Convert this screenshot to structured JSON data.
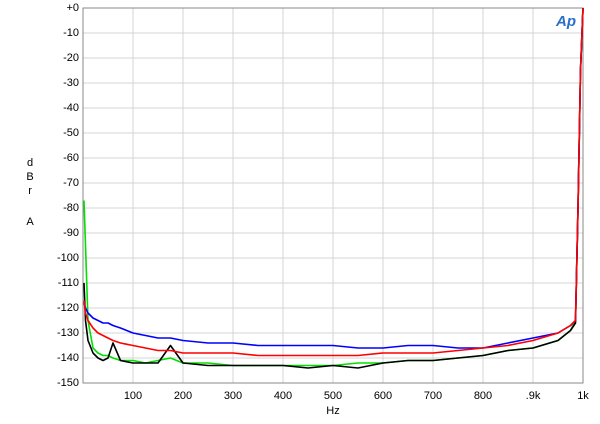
{
  "chart_data": {
    "type": "line",
    "y_label": "dBr",
    "y_unit": "A",
    "x_label": "Hz",
    "logo": "Ap",
    "x": [
      2,
      5,
      10,
      20,
      30,
      40,
      50,
      60,
      75,
      100,
      125,
      150,
      175,
      200,
      250,
      300,
      350,
      400,
      450,
      500,
      550,
      600,
      650,
      700,
      750,
      800,
      850,
      900,
      950,
      975,
      985,
      990,
      995,
      1000
    ],
    "series": [
      {
        "color": "#00e000",
        "values": [
          -77,
          -95,
          -125,
          -136,
          -138,
          -139,
          -139,
          -140,
          -141,
          -141,
          -142,
          -141,
          -140,
          -142,
          -142,
          -143,
          -143,
          -143,
          -143,
          -143,
          -142,
          -142,
          -141,
          -141,
          -140,
          -139,
          -137,
          -136,
          -133,
          -129,
          -125,
          -80,
          -25,
          0
        ]
      },
      {
        "color": "#000000",
        "values": [
          -110,
          -125,
          -133,
          -138,
          -140,
          -141,
          -140,
          -134,
          -141,
          -142,
          -142,
          -142,
          -135,
          -142,
          -143,
          -143,
          -143,
          -143,
          -144,
          -143,
          -144,
          -142,
          -141,
          -141,
          -140,
          -139,
          -137,
          -136,
          -133,
          -129,
          -126,
          -80,
          -25,
          0
        ]
      },
      {
        "color": "#0000ff",
        "values": [
          -118,
          -120,
          -122,
          -124,
          -125,
          -126,
          -126,
          -127,
          -128,
          -130,
          -131,
          -132,
          -132,
          -133,
          -134,
          -134,
          -135,
          -135,
          -135,
          -135,
          -136,
          -136,
          -135,
          -135,
          -136,
          -136,
          -134,
          -132,
          -130,
          -127,
          -125,
          -80,
          -25,
          0
        ]
      },
      {
        "color": "#ff0000",
        "values": [
          -117,
          -122,
          -125,
          -128,
          -130,
          -131,
          -132,
          -133,
          -134,
          -135,
          -136,
          -137,
          -137,
          -138,
          -138,
          -138,
          -139,
          -139,
          -139,
          -139,
          -139,
          -138,
          -138,
          -138,
          -137,
          -136,
          -135,
          -133,
          -130,
          -127,
          -125,
          -80,
          -25,
          0
        ]
      }
    ],
    "xlim": [
      0,
      1000
    ],
    "xticks": [
      100,
      200,
      300,
      400,
      500,
      600,
      700,
      800,
      {
        "value": 900,
        "label": ".9k"
      },
      {
        "value": 1000,
        "label": "1k"
      }
    ],
    "ylim": [
      -150,
      0
    ],
    "yticks": [
      {
        "value": 0,
        "label": "+0"
      },
      -10,
      -20,
      -30,
      -40,
      -50,
      -60,
      -70,
      -80,
      -90,
      -100,
      -110,
      -120,
      -130,
      -140,
      -150
    ],
    "grid": true
  }
}
